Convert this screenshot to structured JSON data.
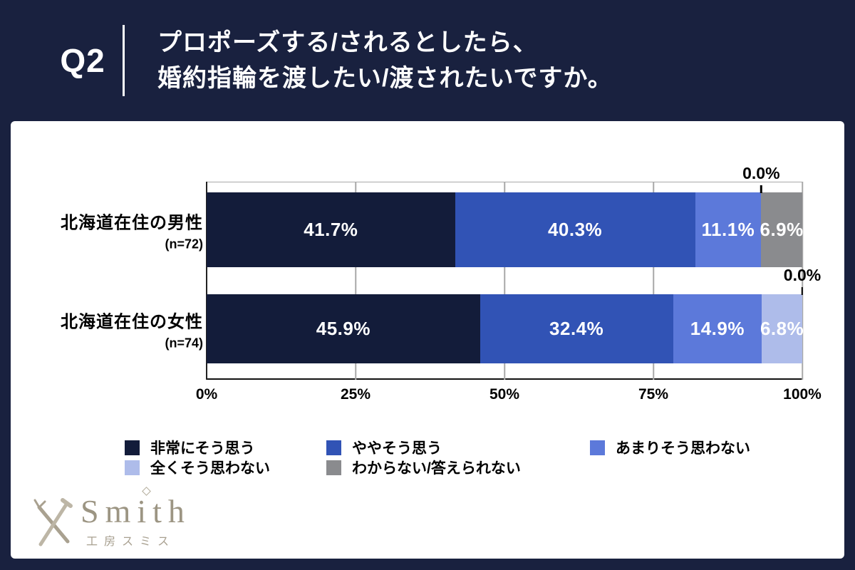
{
  "header": {
    "q_label": "Q2",
    "title_line1": "プロポーズする/されるとしたら、",
    "title_line2": "婚約指輪を渡したい/渡されたいですか。"
  },
  "chart_data": {
    "type": "bar",
    "orientation": "horizontal",
    "stacked": true,
    "categories": [
      "北海道在住の男性",
      "北海道在住の女性"
    ],
    "category_sublabels": [
      "(n=72)",
      "(n=74)"
    ],
    "series": [
      {
        "name": "非常にそう思う",
        "color": "#131C3A",
        "values": [
          41.7,
          45.9
        ]
      },
      {
        "name": "ややそう思う",
        "color": "#3153B5",
        "values": [
          40.3,
          32.4
        ]
      },
      {
        "name": "あまりそう思わない",
        "color": "#5C79DA",
        "values": [
          11.1,
          14.9
        ]
      },
      {
        "name": "全くそう思わない",
        "color": "#AEBCEA",
        "values": [
          0.0,
          6.8
        ]
      },
      {
        "name": "わからない/答えられない",
        "color": "#8A8B8E",
        "values": [
          6.9,
          0.0
        ]
      }
    ],
    "value_suffix": "%",
    "xlabel_ticks": [
      "0%",
      "25%",
      "50%",
      "75%",
      "100%"
    ],
    "xlim": [
      0,
      100
    ],
    "grid": true,
    "legend_position": "bottom",
    "callouts": [
      {
        "row": 0,
        "text": "0.0%",
        "at_percent": 93.1
      },
      {
        "row": 1,
        "text": "0.0%",
        "at_percent": 100
      }
    ]
  },
  "logo": {
    "brand": "Smith",
    "sub": "工房スミス"
  },
  "colors": {
    "background": "#19213F",
    "card": "#FFFFFF",
    "title_text": "#FFFFFF",
    "axis_text": "#000000",
    "logo_taupe": "#9C9583"
  }
}
